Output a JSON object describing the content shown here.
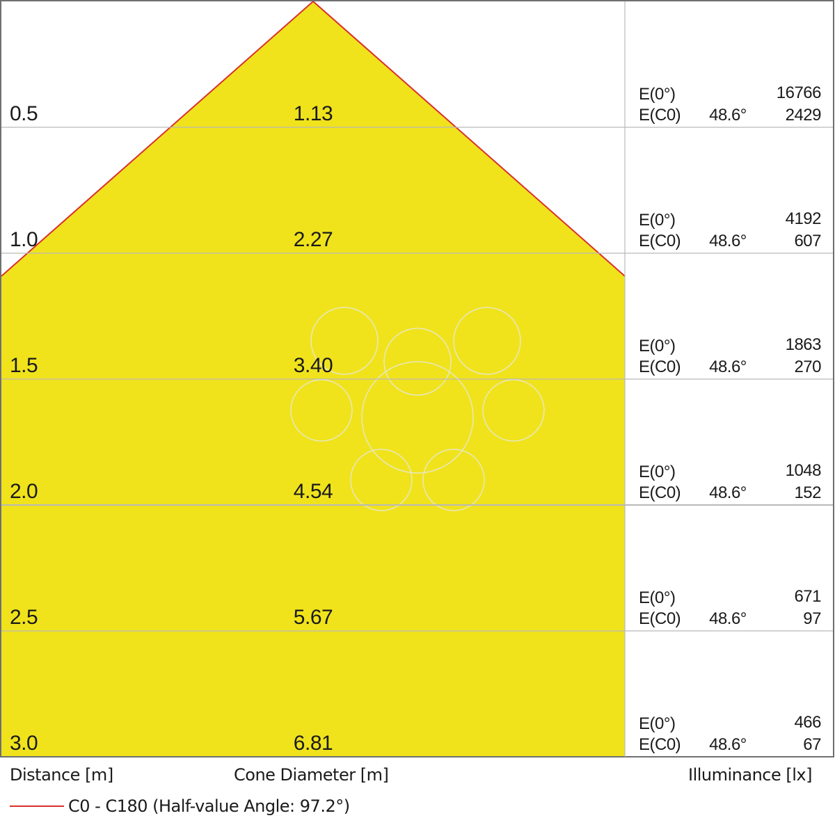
{
  "chart_data": {
    "type": "cone-diagram",
    "beam_name": "C0 - C180",
    "half_value_angle_deg": 97.2,
    "half_value_angle_label": "48.6°",
    "distance_unit_label": "Distance [m]",
    "diameter_unit_label": "Cone Diameter [m]",
    "illuminance_unit_label": "Illuminance [lx]",
    "legend_label": "C0 - C180 (Half-value Angle: 97.2°)",
    "rows": [
      {
        "distance": "0.5",
        "diameter": "1.13",
        "e0_label": "E(0°)",
        "e0": "16766",
        "ec0_label": "E(C0)",
        "ec0": "2429"
      },
      {
        "distance": "1.0",
        "diameter": "2.27",
        "e0_label": "E(0°)",
        "e0": "4192",
        "ec0_label": "E(C0)",
        "ec0": "607"
      },
      {
        "distance": "1.5",
        "diameter": "3.40",
        "e0_label": "E(0°)",
        "e0": "1863",
        "ec0_label": "E(C0)",
        "ec0": "270"
      },
      {
        "distance": "2.0",
        "diameter": "4.54",
        "e0_label": "E(0°)",
        "e0": "1048",
        "ec0_label": "E(C0)",
        "ec0": "152"
      },
      {
        "distance": "2.5",
        "diameter": "5.67",
        "e0_label": "E(0°)",
        "e0": "671",
        "ec0_label": "E(C0)",
        "ec0": "97"
      },
      {
        "distance": "3.0",
        "diameter": "6.81",
        "e0_label": "E(0°)",
        "e0": "466",
        "ec0_label": "E(C0)",
        "ec0": "67"
      }
    ],
    "colors": {
      "cone_fill": "#f0e31c",
      "cone_edge": "#d9302c",
      "grid": "#b9b9b9",
      "frame": "#6f6f6f"
    }
  }
}
